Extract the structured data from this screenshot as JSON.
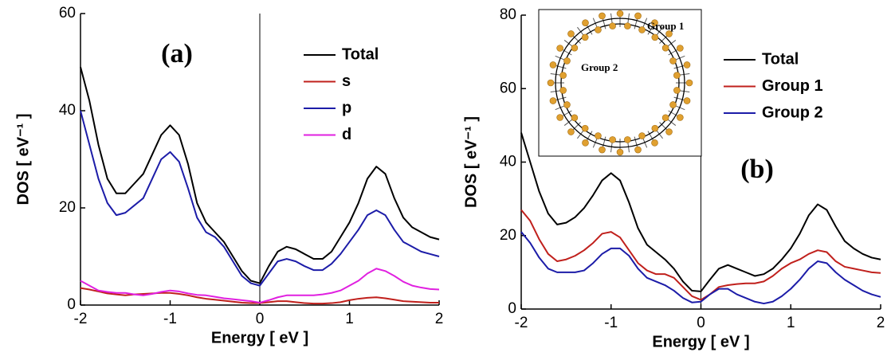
{
  "chart_data": [
    {
      "type": "line",
      "annotation": "(a)",
      "xlabel": "Energy [ eV ]",
      "ylabel": "DOS [ eV⁻¹ ]",
      "xlim": [
        -2,
        2
      ],
      "ylim": [
        0,
        60
      ],
      "xticks": [
        -2,
        -1,
        0,
        1,
        2
      ],
      "yticks": [
        0,
        20,
        40,
        60
      ],
      "vline": 0,
      "legend": "upper right",
      "x": [
        -2,
        -1.9,
        -1.8,
        -1.7,
        -1.6,
        -1.5,
        -1.4,
        -1.3,
        -1.2,
        -1.1,
        -1,
        -0.9,
        -0.8,
        -0.7,
        -0.6,
        -0.5,
        -0.4,
        -0.3,
        -0.2,
        -0.1,
        0,
        0.1,
        0.2,
        0.3,
        0.4,
        0.5,
        0.6,
        0.7,
        0.8,
        0.9,
        1,
        1.1,
        1.2,
        1.3,
        1.4,
        1.5,
        1.6,
        1.7,
        1.8,
        1.9,
        2
      ],
      "series": [
        {
          "name": "Total",
          "color": "#000000",
          "values": [
            49,
            42,
            33,
            26,
            23,
            23,
            25,
            27,
            31,
            35,
            37,
            35,
            29,
            21,
            17,
            15,
            13,
            10,
            7,
            5,
            4.5,
            8,
            11,
            12,
            11.5,
            10.5,
            9.5,
            9.5,
            11,
            14,
            17,
            21,
            26,
            28.5,
            27,
            22,
            18,
            16,
            15,
            14,
            13.5
          ]
        },
        {
          "name": "s",
          "color": "#c0201c",
          "values": [
            3.5,
            3.2,
            2.8,
            2.4,
            2.2,
            2,
            2.2,
            2.3,
            2.4,
            2.5,
            2.5,
            2.3,
            2,
            1.6,
            1.3,
            1.1,
            0.9,
            0.7,
            0.5,
            0.4,
            0.4,
            0.6,
            0.8,
            0.8,
            0.6,
            0.4,
            0.3,
            0.3,
            0.4,
            0.6,
            1,
            1.3,
            1.5,
            1.6,
            1.4,
            1.1,
            0.8,
            0.7,
            0.6,
            0.5,
            0.5
          ]
        },
        {
          "name": "p",
          "color": "#1c1ca8",
          "values": [
            40,
            33,
            26,
            21,
            18.5,
            19,
            20.5,
            22,
            26,
            30,
            31.5,
            29.5,
            24,
            18,
            15,
            14,
            12,
            9,
            6,
            4.5,
            4,
            6.5,
            9,
            9.5,
            9,
            8,
            7.2,
            7.2,
            8.5,
            10.5,
            13,
            15.5,
            18.5,
            19.5,
            18.5,
            15.5,
            13,
            12,
            11,
            10.5,
            10
          ]
        },
        {
          "name": "d",
          "color": "#e020e0",
          "values": [
            5,
            4,
            3,
            2.7,
            2.5,
            2.5,
            2.2,
            2,
            2.3,
            2.7,
            3,
            2.8,
            2.4,
            2.1,
            2,
            1.7,
            1.4,
            1.2,
            1,
            0.8,
            0.5,
            1,
            1.6,
            2,
            2,
            2,
            2,
            2.2,
            2.5,
            3,
            4,
            5,
            6.5,
            7.5,
            7,
            6,
            4.8,
            4,
            3.6,
            3.3,
            3.2
          ]
        }
      ]
    },
    {
      "type": "line",
      "annotation": "(b)",
      "xlabel": "Energy [ eV ]",
      "ylabel": "DOS [ eV⁻¹ ]",
      "xlim": [
        -2,
        2
      ],
      "ylim": [
        0,
        80
      ],
      "xticks": [
        -2,
        -1,
        0,
        1,
        2
      ],
      "yticks": [
        0,
        20,
        40,
        60,
        80
      ],
      "vline": 0,
      "legend": "center right",
      "inset": {
        "labels": [
          "Group 1",
          "Group 2"
        ]
      },
      "x": [
        -2,
        -1.9,
        -1.8,
        -1.7,
        -1.6,
        -1.5,
        -1.4,
        -1.3,
        -1.2,
        -1.1,
        -1,
        -0.9,
        -0.8,
        -0.7,
        -0.6,
        -0.5,
        -0.4,
        -0.3,
        -0.2,
        -0.1,
        0,
        0.1,
        0.2,
        0.3,
        0.4,
        0.5,
        0.6,
        0.7,
        0.8,
        0.9,
        1,
        1.1,
        1.2,
        1.3,
        1.4,
        1.5,
        1.6,
        1.7,
        1.8,
        1.9,
        2
      ],
      "series": [
        {
          "name": "Total",
          "color": "#000000",
          "values": [
            48,
            40,
            32,
            26,
            23,
            23.5,
            25,
            27.5,
            31,
            35,
            37,
            35,
            29,
            22,
            17.5,
            15.5,
            13.5,
            11,
            7.5,
            5,
            4.8,
            8,
            11,
            12,
            11,
            10,
            9,
            9.5,
            11,
            13.5,
            16.5,
            20.5,
            25.5,
            28.5,
            27,
            22.5,
            18.5,
            16.5,
            15,
            14,
            13.5
          ]
        },
        {
          "name": "Group 1",
          "color": "#c0201c",
          "values": [
            27,
            24,
            19,
            15,
            13,
            13.5,
            14.5,
            16,
            18,
            20.5,
            21,
            19.5,
            16,
            12.5,
            10.5,
            9.5,
            9.5,
            8.5,
            6,
            3.5,
            2.5,
            4,
            6,
            6.5,
            6.8,
            7,
            7,
            7.5,
            9,
            11,
            12.5,
            13.5,
            15,
            16,
            15.5,
            13,
            11.5,
            11,
            10.5,
            10,
            9.8
          ]
        },
        {
          "name": "Group 2",
          "color": "#1c1ca8",
          "values": [
            21,
            18,
            14,
            11,
            10,
            10,
            10,
            10.5,
            12.5,
            15,
            16.5,
            16.5,
            14.5,
            11,
            8.5,
            7.5,
            6.5,
            5,
            3,
            1.8,
            2,
            4,
            5.5,
            5.5,
            4,
            3,
            2,
            1.5,
            2,
            3.5,
            5.5,
            8,
            11,
            13,
            12.5,
            10,
            8,
            6.5,
            5,
            4,
            3.3
          ]
        }
      ]
    }
  ]
}
